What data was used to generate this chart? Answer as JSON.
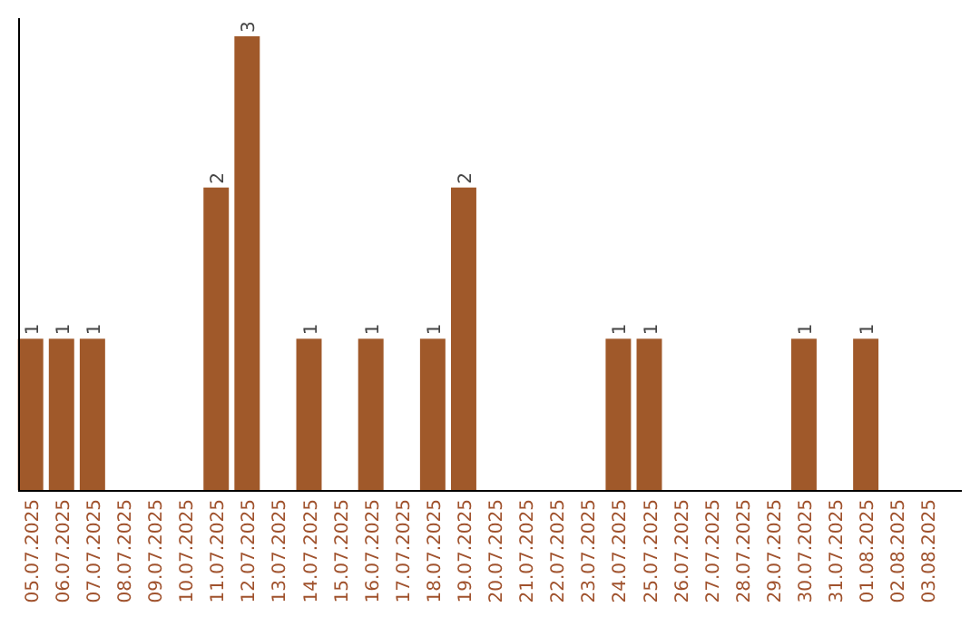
{
  "chart_data": {
    "type": "bar",
    "categories": [
      "05.07.2025",
      "06.07.2025",
      "07.07.2025",
      "08.07.2025",
      "09.07.2025",
      "10.07.2025",
      "11.07.2025",
      "12.07.2025",
      "13.07.2025",
      "14.07.2025",
      "15.07.2025",
      "16.07.2025",
      "17.07.2025",
      "18.07.2025",
      "19.07.2025",
      "20.07.2025",
      "21.07.2025",
      "22.07.2025",
      "23.07.2025",
      "24.07.2025",
      "25.07.2025",
      "26.07.2025",
      "27.07.2025",
      "28.07.2025",
      "29.07.2025",
      "30.07.2025",
      "31.07.2025",
      "01.08.2025",
      "02.08.2025",
      "03.08.2025"
    ],
    "values": [
      1,
      1,
      1,
      0,
      0,
      0,
      2,
      3,
      0,
      1,
      0,
      1,
      0,
      1,
      2,
      0,
      0,
      0,
      0,
      1,
      1,
      0,
      0,
      0,
      0,
      1,
      0,
      1,
      0,
      0
    ],
    "value_labels": [
      "1",
      "1",
      "1",
      null,
      null,
      null,
      "2",
      "3",
      null,
      "1",
      null,
      "1",
      null,
      "1",
      "2",
      null,
      null,
      null,
      null,
      "1",
      "1",
      null,
      null,
      null,
      null,
      "1",
      null,
      "1",
      null,
      null
    ],
    "color": "#a0592a",
    "relative": false
  }
}
